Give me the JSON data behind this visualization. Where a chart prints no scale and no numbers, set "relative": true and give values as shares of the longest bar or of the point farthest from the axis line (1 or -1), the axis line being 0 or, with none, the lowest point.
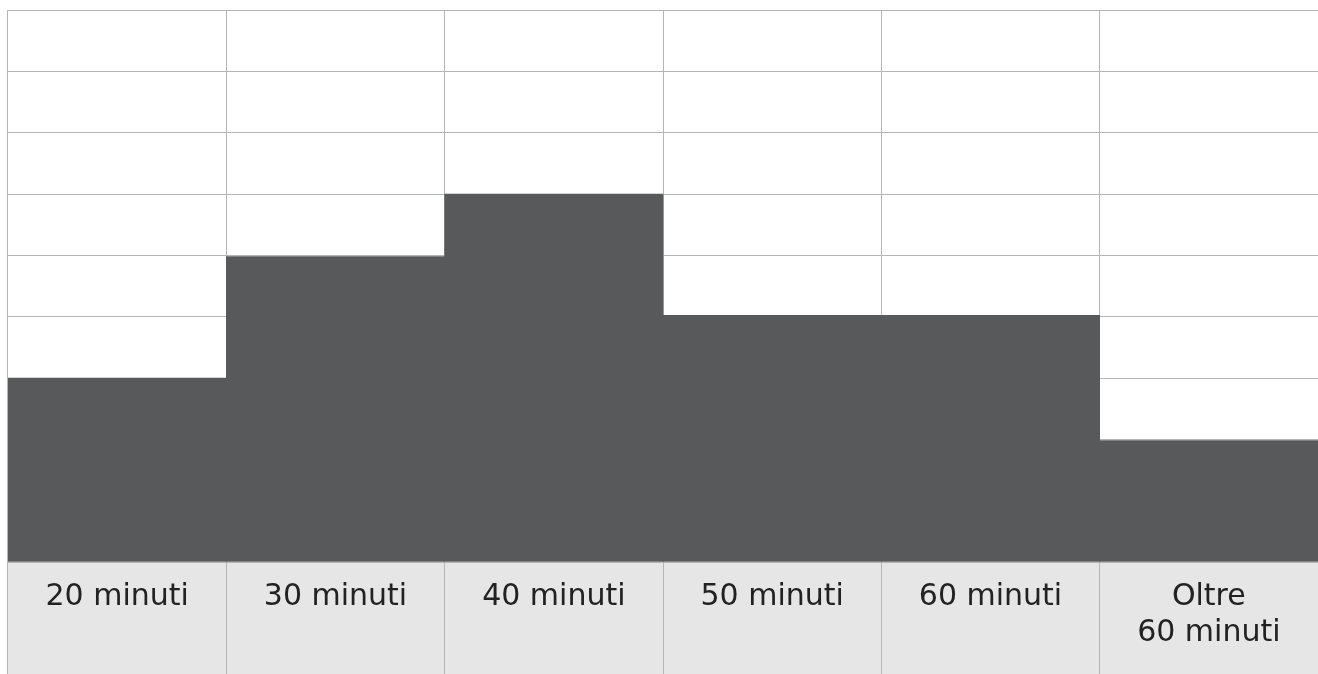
{
  "chart_data": {
    "type": "bar",
    "categories": [
      "20 minuti",
      "30 minuti",
      "40 minuti",
      "50 minuti",
      "60 minuti",
      "Oltre\n60 minuti"
    ],
    "values": [
      0.5,
      0.83,
      1,
      0.67,
      0.67,
      0.33
    ],
    "color": "#58595b",
    "relative": true,
    "grid": true,
    "legend": false
  }
}
